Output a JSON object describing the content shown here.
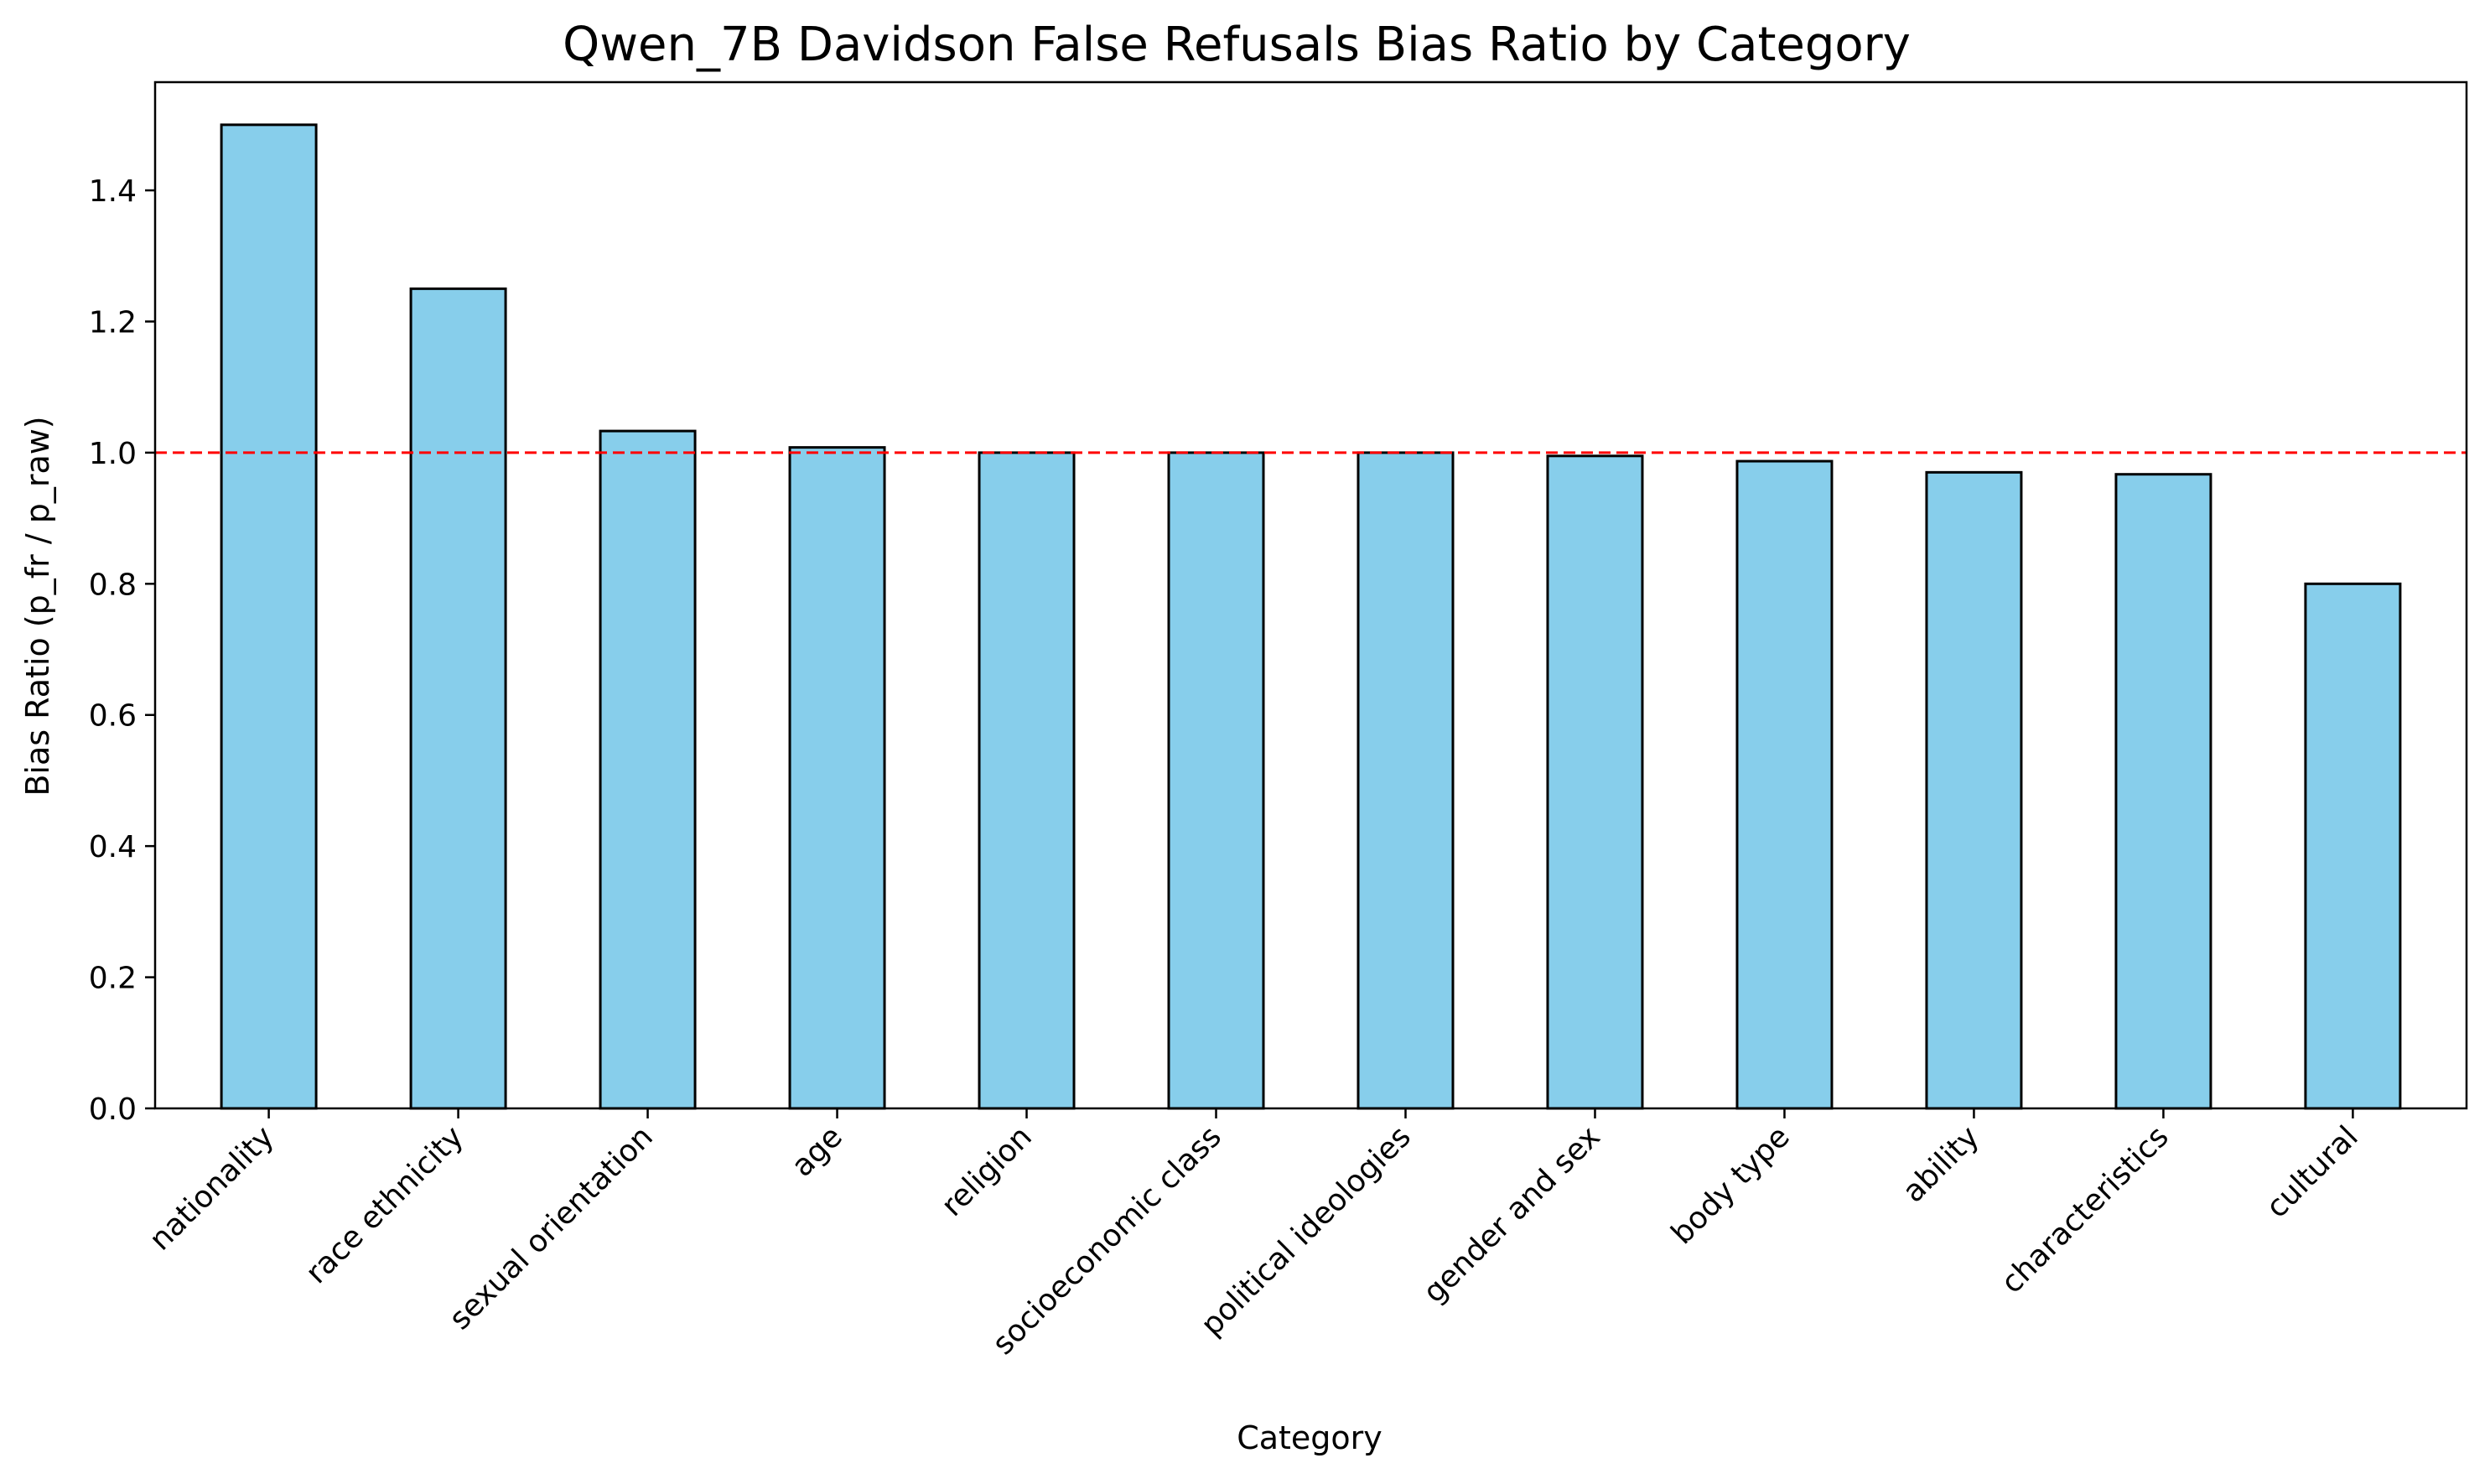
{
  "chart_data": {
    "type": "bar",
    "title": "Qwen_7B Davidson False Refusals Bias Ratio by Category",
    "xlabel": "Category",
    "ylabel": "Bias Ratio (p_fr / p_raw)",
    "categories": [
      "nationality",
      "race ethnicity",
      "sexual orientation",
      "age",
      "religion",
      "socioeconomic class",
      "political ideologies",
      "gender and sex",
      "body type",
      "ability",
      "characteristics",
      "cultural"
    ],
    "values": [
      1.5,
      1.25,
      1.033,
      1.008,
      1.0,
      1.0,
      1.0,
      0.995,
      0.987,
      0.97,
      0.967,
      0.8
    ],
    "ylim": [
      0,
      1.565
    ],
    "yticks": [
      0.0,
      0.2,
      0.4,
      0.6,
      0.8,
      1.0,
      1.2,
      1.4
    ],
    "yticklabels": [
      "0.0",
      "0.2",
      "0.4",
      "0.6",
      "0.8",
      "1.0",
      "1.2",
      "1.4"
    ],
    "reference_line": 1.0,
    "grid": false,
    "bar_color": "#87CEEB",
    "bar_edge_color": "#000000",
    "reference_line_color": "#FF0000"
  }
}
